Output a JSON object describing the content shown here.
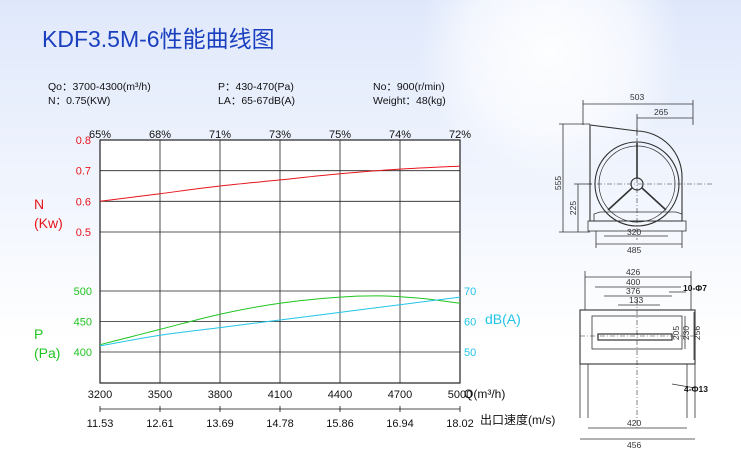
{
  "title": "KDF3.5M-6性能曲线图",
  "specs": {
    "q": "Qo：3700-4300(m³/h)",
    "p": "P：430-470(Pa)",
    "no": "No：900(r/min)",
    "n": "N：0.75(KW)",
    "la": "LA：65-67dB(A)",
    "weight": "Weight：48(kg)"
  },
  "colors": {
    "n": "#e8141c",
    "p": "#1fc41f",
    "db": "#22c5e6",
    "title": "#1a3fbf",
    "grid": "#222222"
  },
  "chart_data": {
    "type": "line",
    "x": [
      3200,
      3500,
      3800,
      4100,
      4400,
      4700,
      5000
    ],
    "xlim": [
      3200,
      5000
    ],
    "x_tick_labels": [
      "3200",
      "3500",
      "3800",
      "4100",
      "4400",
      "4700",
      "5000"
    ],
    "xlabel": "Q(m³/h)",
    "velocity_ticks": [
      "11.53",
      "12.61",
      "13.69",
      "14.78",
      "15.86",
      "16.94",
      "18.02"
    ],
    "velocity_label": "出口速度(m/s)",
    "efficiency_ticks": [
      "65%",
      "68%",
      "71%",
      "73%",
      "75%",
      "74%",
      "72%"
    ],
    "n_axis": {
      "label_symbol": "N",
      "label_unit": "(Kw)",
      "ticks": [
        "0.8",
        "0.7",
        "0.6",
        "0.5"
      ],
      "range": [
        0.5,
        0.8
      ]
    },
    "p_axis": {
      "label_symbol": "P",
      "label_unit": "(Pa)",
      "ticks": [
        "500",
        "450",
        "400"
      ],
      "range": [
        400,
        500
      ]
    },
    "db_axis": {
      "label": "dB(A)",
      "ticks": [
        "70",
        "60",
        "50"
      ],
      "range": [
        50,
        70
      ]
    },
    "series": [
      {
        "axis": "n",
        "x": [
          3200,
          3500,
          3800,
          4100,
          4400,
          4700,
          5000
        ],
        "values": [
          0.6,
          0.625,
          0.65,
          0.67,
          0.69,
          0.705,
          0.715
        ]
      },
      {
        "axis": "p",
        "x": [
          3200,
          3500,
          3800,
          4100,
          4400,
          4600,
          4800,
          5000
        ],
        "values": [
          412,
          437,
          462,
          480,
          490,
          492,
          488,
          480
        ]
      },
      {
        "axis": "db",
        "x": [
          3200,
          3500,
          3800,
          4100,
          4400,
          4700,
          5000
        ],
        "values": [
          52,
          55.5,
          58,
          60.5,
          63,
          65.5,
          68
        ]
      }
    ]
  },
  "drawing": {
    "top_width": "503",
    "top_offset": "265",
    "height": "555",
    "center_height": "225",
    "base_inner": "320",
    "base_outer": "485",
    "flange_w1": "426",
    "flange_w2": "400",
    "flange_w3": "376",
    "flange_w4": "133",
    "holes_top": "10-Φ7",
    "side_h1": "205",
    "side_h2": "230",
    "side_h3": "256",
    "holes_bottom": "4-Φ13",
    "bottom_w1": "420",
    "bottom_w2": "456"
  }
}
